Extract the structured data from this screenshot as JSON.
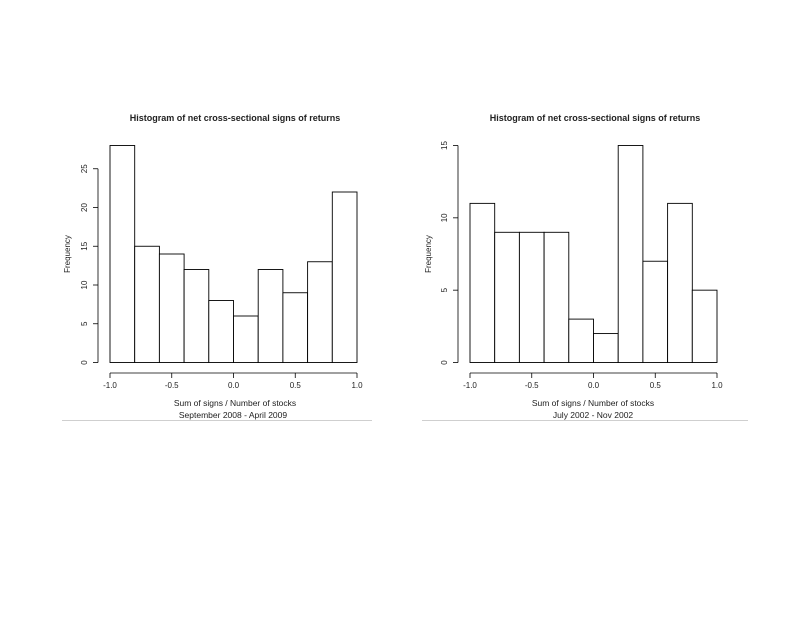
{
  "chart_data": [
    {
      "type": "bar",
      "title": "Histogram of net cross-sectional signs of returns",
      "xlabel": "Sum  of signs / Number of stocks",
      "ylabel": "Frequency",
      "caption": "September 2008 - April 2009",
      "bins": [
        [
          -1.0,
          -0.8
        ],
        [
          -0.8,
          -0.6
        ],
        [
          -0.6,
          -0.4
        ],
        [
          -0.4,
          -0.2
        ],
        [
          -0.2,
          0.0
        ],
        [
          0.0,
          0.2
        ],
        [
          0.2,
          0.4
        ],
        [
          0.4,
          0.6
        ],
        [
          0.6,
          0.8
        ],
        [
          0.8,
          1.0
        ]
      ],
      "values": [
        28,
        15,
        14,
        12,
        8,
        6,
        12,
        9,
        13,
        22
      ],
      "xlim": [
        -1.0,
        1.0
      ],
      "ylim": [
        0,
        28
      ],
      "xticks": [
        "-1.0",
        "-0.5",
        "0.0",
        "0.5",
        "1.0"
      ],
      "xtick_values": [
        -1.0,
        -0.5,
        0.0,
        0.5,
        1.0
      ],
      "yticks": [
        "0",
        "5",
        "10",
        "15",
        "20",
        "25"
      ],
      "ytick_values": [
        0,
        5,
        10,
        15,
        20,
        25
      ],
      "grid": false
    },
    {
      "type": "bar",
      "title": "Histogram of net cross-sectional signs of returns",
      "xlabel": "Sum  of signs / Number of stocks",
      "ylabel": "Frequency",
      "caption": "July 2002 - Nov 2002",
      "bins": [
        [
          -1.0,
          -0.8
        ],
        [
          -0.8,
          -0.6
        ],
        [
          -0.6,
          -0.4
        ],
        [
          -0.4,
          -0.2
        ],
        [
          -0.2,
          0.0
        ],
        [
          0.0,
          0.2
        ],
        [
          0.2,
          0.4
        ],
        [
          0.4,
          0.6
        ],
        [
          0.6,
          0.8
        ],
        [
          0.8,
          1.0
        ]
      ],
      "values": [
        11,
        9,
        9,
        9,
        3,
        2,
        15,
        7,
        11,
        5
      ],
      "xlim": [
        -1.0,
        1.0
      ],
      "ylim": [
        0,
        15
      ],
      "xticks": [
        "-1.0",
        "-0.5",
        "0.0",
        "0.5",
        "1.0"
      ],
      "xtick_values": [
        -1.0,
        -0.5,
        0.0,
        0.5,
        1.0
      ],
      "yticks": [
        "0",
        "5",
        "10",
        "15"
      ],
      "ytick_values": [
        0,
        5,
        10,
        15
      ],
      "grid": false
    }
  ]
}
